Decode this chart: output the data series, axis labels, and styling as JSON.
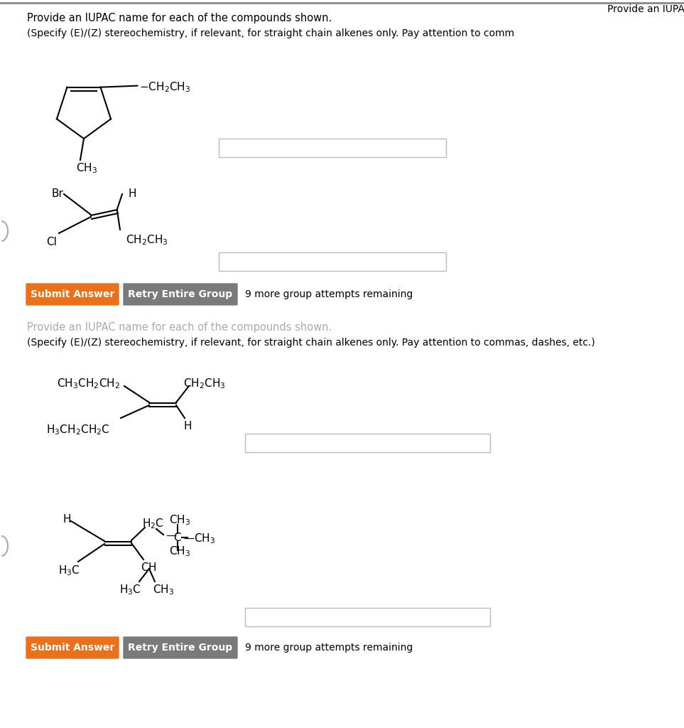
{
  "bg_color": "#ffffff",
  "orange_color": "#e8711a",
  "gray_button_color": "#7a7a7a",
  "title1": "Provide an IUPAC name for each of the compounds shown.",
  "subtitle1": "(Specify (E)/(Z) stereochemistry, if relevant, for straight chain alkenes only. Pay attention to comm",
  "title2_faded": "Provide an IUPAC name for each of the compounds shown.",
  "subtitle2": "(Specify (E)/(Z) stereochemistry, if relevant, for straight chain alkenes only. Pay attention to commas, dashes, etc.)",
  "submit_btn": "Submit Answer",
  "retry_btn": "Retry Entire Group",
  "attempts_text": "9 more group attempts remaining"
}
